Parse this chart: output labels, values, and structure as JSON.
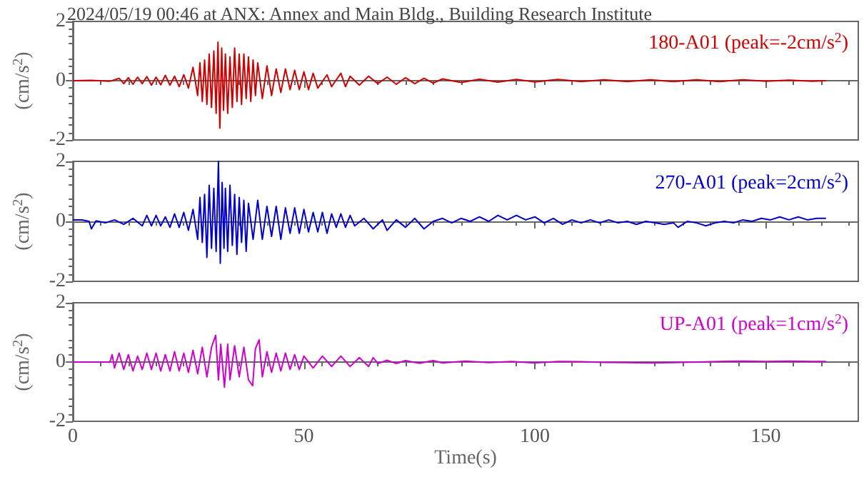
{
  "chart_data": [
    {
      "type": "line",
      "title": "2024/05/19 00:46 at ANX: Annex and Main Bldg., Building Research Institute",
      "ylabel": "(cm/s$^{2}$)",
      "xlim": [
        0,
        170
      ],
      "xticks": [
        0,
        50,
        100,
        150
      ],
      "ylim": [
        -2,
        2
      ],
      "yticks": [
        -2,
        0,
        2
      ],
      "tick_labels": "y",
      "marker": "none",
      "line_style": "solid",
      "series": [
        {
          "name": "180-A01 (peak=-2cm/s$^{2}$)",
          "color": "#cc0000",
          "x": [
            0,
            4,
            8,
            10,
            11,
            12,
            13,
            14,
            15,
            16,
            17,
            18,
            19,
            20,
            21,
            22,
            23,
            24,
            25,
            26,
            27,
            27.5,
            28,
            28.5,
            29,
            29.5,
            30,
            30.5,
            31,
            31.4,
            31.8,
            32.2,
            32.6,
            33,
            33.5,
            34,
            34.5,
            35,
            35.5,
            36,
            36.5,
            37,
            37.5,
            38,
            38.5,
            39,
            39.5,
            40,
            41,
            42,
            43,
            44,
            45,
            46,
            47,
            48,
            49,
            50,
            51,
            52,
            53,
            55,
            56,
            58,
            59,
            60,
            62,
            64,
            66,
            68,
            70,
            72,
            74,
            76,
            78,
            80,
            84,
            88,
            92,
            96,
            100,
            105,
            110,
            115,
            120,
            125,
            130,
            135,
            140,
            145,
            150,
            155,
            160,
            163
          ],
          "values": [
            0,
            0.01,
            -0.02,
            0.08,
            -0.1,
            0.1,
            -0.12,
            0.12,
            -0.1,
            0.14,
            -0.15,
            0.12,
            -0.14,
            0.18,
            -0.15,
            0.15,
            -0.2,
            0.2,
            -0.25,
            0.45,
            -0.5,
            0.6,
            -0.7,
            0.7,
            -0.8,
            0.9,
            -0.9,
            1.0,
            -1.1,
            1.3,
            -1.6,
            1.1,
            -1.0,
            0.9,
            -1.1,
            0.8,
            -0.9,
            1.1,
            -0.7,
            0.9,
            -0.8,
            0.9,
            -0.6,
            0.8,
            -0.7,
            0.7,
            -0.5,
            0.6,
            -0.6,
            0.5,
            -0.5,
            0.4,
            -0.4,
            0.4,
            -0.3,
            0.35,
            -0.3,
            0.3,
            -0.3,
            0.25,
            -0.25,
            0.2,
            -0.2,
            0.25,
            -0.2,
            0.15,
            -0.15,
            0.15,
            -0.1,
            0.12,
            -0.12,
            0.1,
            -0.1,
            0.08,
            -0.08,
            0.06,
            -0.06,
            0.05,
            -0.05,
            0.04,
            -0.04,
            0.04,
            -0.03,
            0.03,
            -0.03,
            0.03,
            -0.03,
            0.03,
            -0.03,
            0.03,
            -0.02,
            0.02,
            -0.02,
            0
          ]
        }
      ]
    },
    {
      "type": "line",
      "ylabel": "(cm/s$^{2}$)",
      "xlim": [
        0,
        170
      ],
      "xticks": [
        0,
        50,
        100,
        150
      ],
      "ylim": [
        -2,
        2
      ],
      "yticks": [
        -2,
        0,
        2
      ],
      "tick_labels": "y",
      "marker": "none",
      "line_style": "solid",
      "series": [
        {
          "name": "270-A01 (peak=2cm/s$^{2}$)",
          "color": "#0000cc",
          "x": [
            0,
            2,
            3.5,
            4,
            5,
            7,
            9,
            11,
            13,
            15,
            16,
            17,
            18,
            19,
            20,
            21,
            22,
            23,
            24,
            25,
            26,
            27,
            27.5,
            28,
            28.5,
            29,
            29.5,
            30,
            30.5,
            31,
            31.5,
            31.9,
            32.3,
            32.7,
            33,
            33.5,
            34,
            34.5,
            35,
            35.5,
            36,
            36.5,
            37,
            37.5,
            38,
            39,
            40,
            41,
            42,
            43,
            44,
            45,
            46,
            47,
            48,
            49,
            50,
            51,
            52,
            53,
            54,
            55,
            56,
            57,
            58,
            59,
            60,
            61,
            63,
            65,
            67,
            68,
            70,
            72,
            74,
            76,
            78,
            80,
            82,
            84,
            86,
            88,
            90,
            92,
            94,
            96,
            98,
            100,
            102,
            104,
            106,
            108,
            110,
            112,
            114,
            116,
            118,
            120,
            122,
            124,
            126,
            128,
            130,
            131,
            133,
            135,
            137,
            139,
            141,
            143,
            145,
            147,
            149,
            151,
            153,
            155,
            157,
            159,
            161,
            163
          ],
          "values": [
            0.05,
            0.05,
            0,
            -0.25,
            0.02,
            -0.05,
            0.05,
            -0.1,
            0.1,
            -0.15,
            0.2,
            -0.15,
            0.2,
            -0.15,
            0.15,
            -0.2,
            0.25,
            -0.2,
            0.3,
            -0.3,
            0.4,
            -0.6,
            0.8,
            -0.7,
            0.9,
            -1.2,
            1.2,
            -0.9,
            1.1,
            -1.0,
            2.0,
            -1.4,
            1.3,
            -0.9,
            1.1,
            -1.0,
            1.2,
            -0.8,
            0.9,
            -1.1,
            0.8,
            -0.7,
            0.7,
            -1.0,
            0.6,
            -0.6,
            0.7,
            -0.6,
            0.5,
            -0.5,
            0.5,
            -0.6,
            0.45,
            -0.4,
            0.45,
            -0.4,
            0.4,
            -0.35,
            0.3,
            -0.35,
            0.3,
            -0.4,
            0.25,
            -0.2,
            0.25,
            -0.2,
            0.2,
            -0.15,
            0.1,
            -0.25,
            0.05,
            -0.3,
            0.05,
            -0.2,
            0.1,
            -0.25,
            0,
            0.1,
            -0.05,
            0.1,
            0,
            0.15,
            0,
            0.2,
            0.05,
            0.2,
            0.05,
            0.15,
            -0.05,
            0.1,
            -0.1,
            0.05,
            -0.05,
            0.05,
            -0.05,
            0.05,
            -0.05,
            0,
            -0.1,
            0,
            -0.05,
            -0.1,
            -0.05,
            -0.2,
            0,
            -0.05,
            -0.15,
            -0.05,
            0,
            -0.05,
            0.05,
            0,
            0.1,
            0.05,
            0.15,
            0.05,
            0.15,
            0.05,
            0.1,
            0.1
          ]
        }
      ]
    },
    {
      "type": "line",
      "ylabel": "(cm/s$^{2}$)",
      "xlabel": "Time(s)",
      "xlim": [
        0,
        170
      ],
      "xticks": [
        0,
        50,
        100,
        150
      ],
      "ylim": [
        -2,
        2
      ],
      "yticks": [
        -2,
        0,
        2
      ],
      "marker": "none",
      "line_style": "solid",
      "series": [
        {
          "name": "UP-A01 (peak=1cm/s$^{2}$)",
          "color": "#cc00cc",
          "x": [
            0,
            4,
            8,
            8.5,
            9,
            10,
            11,
            12,
            13,
            14,
            15,
            16,
            17,
            18,
            19,
            20,
            21,
            22,
            23,
            24,
            25,
            26,
            27,
            28,
            29,
            30,
            30.9,
            31.5,
            32,
            32.8,
            33.5,
            34,
            35,
            36,
            37,
            38,
            38.9,
            39.5,
            40.3,
            41,
            42,
            43,
            44,
            45,
            46,
            47,
            48,
            49,
            50,
            52,
            54,
            56,
            58,
            60,
            62,
            64,
            65,
            66,
            68,
            70,
            72,
            75,
            78,
            80,
            85,
            90,
            95,
            100,
            105,
            110,
            115,
            120,
            125,
            130,
            135,
            140,
            145,
            150,
            155,
            160,
            163
          ],
          "values": [
            0,
            0,
            0,
            0.25,
            -0.2,
            0.3,
            -0.25,
            0.25,
            -0.3,
            0.2,
            -0.25,
            0.3,
            -0.25,
            0.3,
            -0.3,
            0.25,
            -0.3,
            0.35,
            -0.3,
            0.3,
            -0.35,
            0.4,
            -0.4,
            0.5,
            -0.5,
            0.5,
            0.9,
            -0.6,
            0.6,
            -0.85,
            0.6,
            -0.6,
            0.55,
            -0.5,
            0.5,
            -0.6,
            -0.8,
            0.45,
            0.75,
            -0.5,
            0.35,
            -0.35,
            0.3,
            -0.3,
            0.3,
            -0.25,
            0.25,
            -0.25,
            0.2,
            -0.2,
            0.2,
            -0.15,
            0.2,
            -0.15,
            0.15,
            -0.15,
            0.15,
            -0.05,
            0.06,
            -0.05,
            0.05,
            -0.04,
            0.05,
            -0.03,
            0.03,
            -0.02,
            0.02,
            -0.03,
            0.02,
            0.01,
            -0.01,
            -0.02,
            -0.03,
            -0.02,
            0,
            0.02,
            0.03,
            0.02,
            0.03,
            0.02,
            0.02
          ]
        }
      ]
    }
  ]
}
